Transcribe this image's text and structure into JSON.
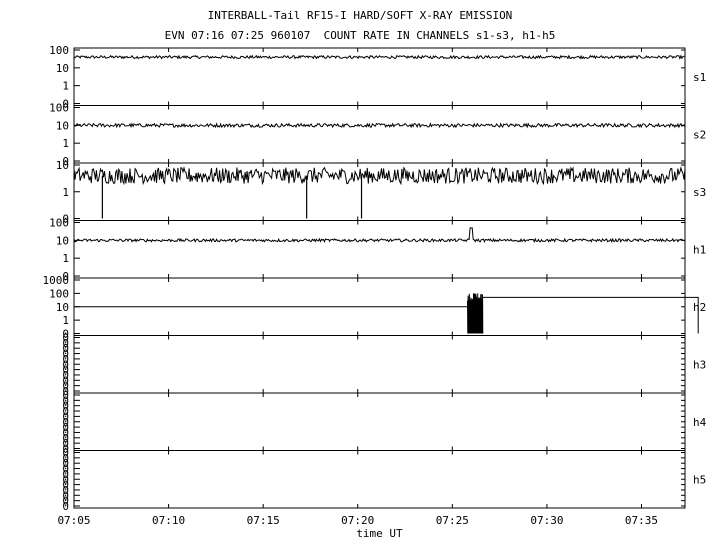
{
  "header": {
    "title": "INTERBALL-Tail RF15-I HARD/SOFT X-RAY EMISSION",
    "subtitle": "EVN 07:16 07:25 960107  COUNT RATE IN CHANNELS s1-s3, h1-h5"
  },
  "chart_data": {
    "type": "line",
    "xlabel": "time UT",
    "x_ticks": [
      "07:05",
      "07:10",
      "07:15",
      "07:20",
      "07:25",
      "07:30",
      "07:35"
    ],
    "x_range_minutes": [
      0,
      32.3
    ],
    "y_scale": "log",
    "grid": false,
    "panels": [
      {
        "name": "s1",
        "y_ticks": [
          "100",
          "10",
          "1",
          "0"
        ],
        "series": {
          "baseline": 40,
          "noise_decades": 0.08
        }
      },
      {
        "name": "s2",
        "y_ticks": [
          "100",
          "10",
          "1",
          "0"
        ],
        "series": {
          "baseline": 10,
          "noise_decades": 0.1
        }
      },
      {
        "name": "s3",
        "y_ticks": [
          "10",
          "1",
          "0"
        ],
        "series": {
          "baseline": 4,
          "noise_decades": 0.3,
          "drops_to_zero_at": [
            1.5,
            12.3,
            15.2
          ]
        }
      },
      {
        "name": "h1",
        "y_ticks": [
          "100",
          "10",
          "1",
          "0"
        ],
        "series": {
          "baseline": 10,
          "noise_decades": 0.08,
          "spike": {
            "t": 21.0,
            "value": 50
          }
        }
      },
      {
        "name": "h2",
        "y_ticks": [
          "1000",
          "100",
          "10",
          "1",
          "0"
        ],
        "series": {
          "steps": [
            {
              "from": 0,
              "to": 20.8,
              "value": 10
            },
            {
              "from": 20.8,
              "to": 21.6,
              "value": 1,
              "burst_max": 100
            },
            {
              "from": 21.6,
              "to": 33.0,
              "value": 50
            }
          ]
        }
      },
      {
        "name": "h3",
        "y_ticks": [
          "0",
          "0",
          "0",
          "0",
          "0",
          "0",
          "0",
          "0",
          "0",
          "0",
          "0"
        ],
        "series": null
      },
      {
        "name": "h4",
        "y_ticks": [
          "0",
          "0",
          "0",
          "0",
          "0",
          "0",
          "0",
          "0",
          "0",
          "0",
          "0"
        ],
        "series": null
      },
      {
        "name": "h5",
        "y_ticks": [
          "0",
          "0",
          "0",
          "0",
          "0",
          "0",
          "0",
          "0",
          "0",
          "0",
          "0"
        ],
        "series": null
      }
    ]
  }
}
